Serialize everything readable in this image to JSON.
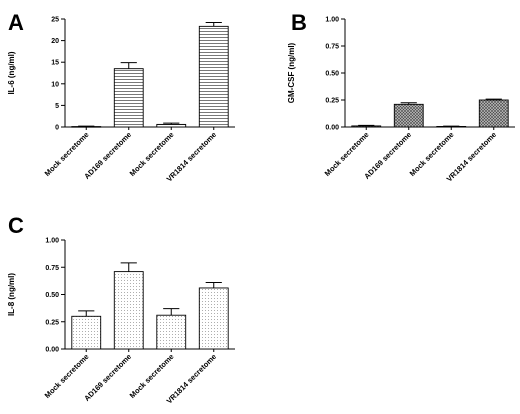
{
  "chart_data": [
    {
      "panel": "A",
      "type": "bar",
      "ylabel": "IL-6 (ng/ml)",
      "xlabel": "",
      "categories": [
        "Mock secretome",
        "AD169 secretome",
        "Mock secretome",
        "VR1814 secretome"
      ],
      "values": [
        0.1,
        13.5,
        0.6,
        23.3
      ],
      "errors": [
        0.1,
        1.4,
        0.3,
        0.9
      ],
      "ylim": [
        0,
        25
      ],
      "yticks": [
        0,
        5,
        10,
        15,
        20,
        25
      ],
      "ytick_labels": [
        "0",
        "5",
        "10",
        "15",
        "20",
        "25"
      ],
      "fill": "horizontal-lines",
      "grid": false
    },
    {
      "panel": "B",
      "type": "bar",
      "ylabel": "GM-CSF (ng/ml)",
      "xlabel": "",
      "categories": [
        "Mock secretome",
        "AD169 secretome",
        "Mock secretome",
        "VR1814 secretome"
      ],
      "values": [
        0.01,
        0.21,
        0.005,
        0.25
      ],
      "errors": [
        0.005,
        0.015,
        0.003,
        0.008
      ],
      "ylim": [
        0,
        1.0
      ],
      "yticks": [
        0,
        0.25,
        0.5,
        0.75,
        1.0
      ],
      "ytick_labels": [
        "0.00",
        "0.25",
        "0.50",
        "0.75",
        "1.00"
      ],
      "fill": "crosshatch",
      "grid": false
    },
    {
      "panel": "C",
      "type": "bar",
      "ylabel": "IL-8 (ng/ml)",
      "xlabel": "",
      "categories": [
        "Mock secretome",
        "AD169 secretome",
        "Mock secretome",
        "VR1814 secretome"
      ],
      "values": [
        0.3,
        0.71,
        0.31,
        0.56
      ],
      "errors": [
        0.05,
        0.08,
        0.06,
        0.05
      ],
      "ylim": [
        0,
        1.0
      ],
      "yticks": [
        0,
        0.25,
        0.5,
        0.75,
        1.0
      ],
      "ytick_labels": [
        "0.00",
        "0.25",
        "0.50",
        "0.75",
        "1.00"
      ],
      "fill": "dots",
      "grid": false
    }
  ]
}
